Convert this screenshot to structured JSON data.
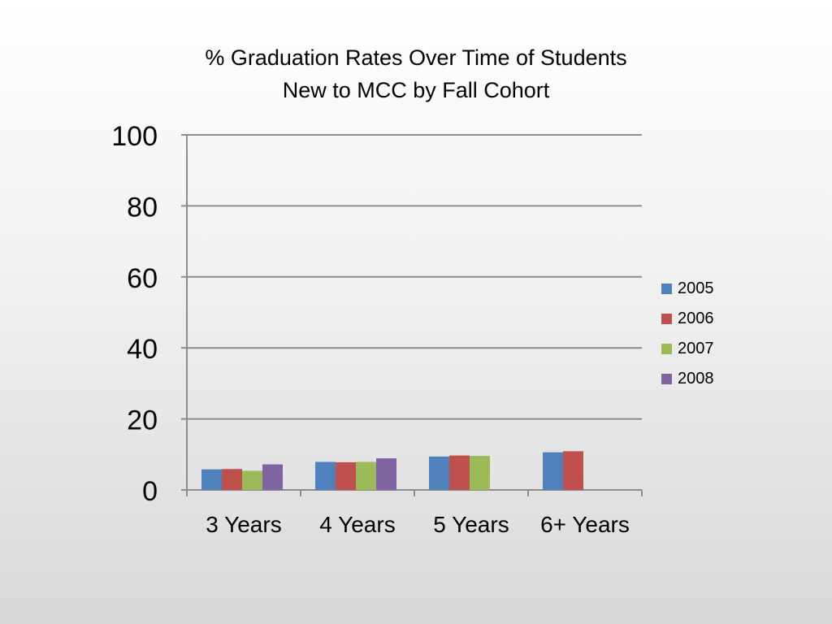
{
  "chart_data": {
    "type": "bar",
    "title": "% Graduation Rates Over Time of Students New to MCC by Fall Cohort",
    "title_lines": [
      "% Graduation Rates Over Time of Students",
      "New to MCC by Fall Cohort"
    ],
    "categories": [
      "3 Years",
      "4 Years",
      "5 Years",
      "6+ Years"
    ],
    "series": [
      {
        "name": "2005",
        "color": "#4f81bd",
        "values": [
          5.8,
          7.9,
          9.4,
          10.6
        ]
      },
      {
        "name": "2006",
        "color": "#c0504d",
        "values": [
          5.9,
          7.8,
          9.7,
          10.9
        ]
      },
      {
        "name": "2007",
        "color": "#9bbb59",
        "values": [
          5.4,
          7.9,
          9.6,
          null
        ]
      },
      {
        "name": "2008",
        "color": "#8064a2",
        "values": [
          7.2,
          8.9,
          null,
          null
        ]
      }
    ],
    "ylim": [
      0,
      100
    ],
    "yticks": [
      "0",
      "20",
      "40",
      "60",
      "80",
      "100"
    ],
    "grid": true,
    "legend_position": "right",
    "xlabel": "",
    "ylabel": ""
  }
}
